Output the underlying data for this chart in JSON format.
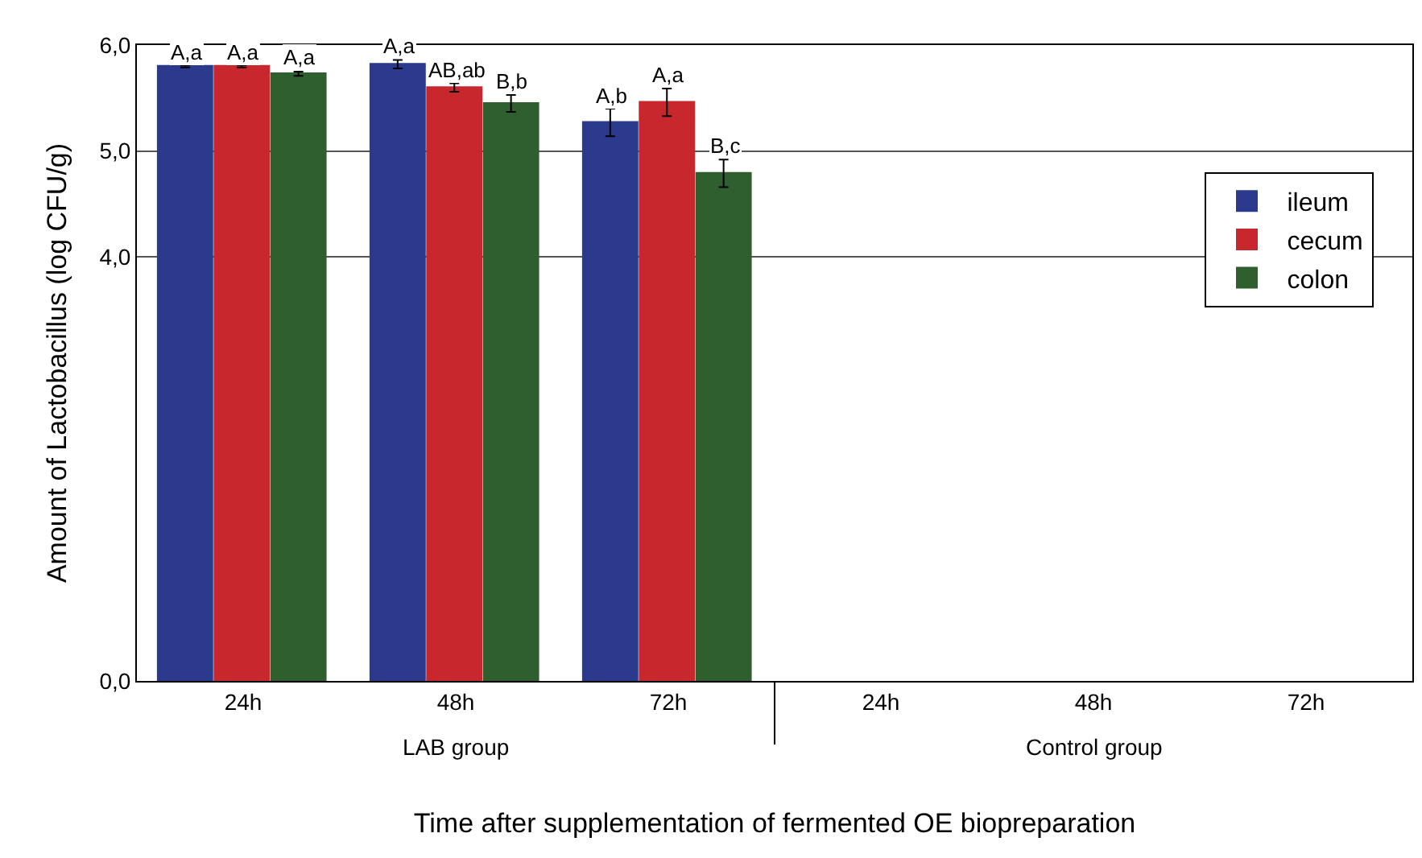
{
  "chart_data": {
    "type": "bar",
    "ylabel": "Amount of Lactobacillus (log CFU/g)",
    "xlabel": "Time after supplementation of fermented OE biopreparation",
    "categories": [
      "24h",
      "48h",
      "72h",
      "24h",
      "48h",
      "72h"
    ],
    "series": [
      {
        "name": "ileum",
        "color": "#2b3a8c",
        "values": [
          5.8,
          5.82,
          5.27,
          null,
          null,
          null
        ],
        "errors": [
          0.01,
          0.04,
          0.13,
          null,
          null,
          null
        ],
        "value_labels": [
          "A,a",
          "A,a",
          "A,b",
          null,
          null,
          null
        ]
      },
      {
        "name": "cecum",
        "color": "#c8282d",
        "values": [
          5.8,
          5.6,
          5.46,
          null,
          null,
          null
        ],
        "errors": [
          0.01,
          0.04,
          0.13,
          null,
          null,
          null
        ],
        "value_labels": [
          "A,a",
          "AB,ab",
          "A,a",
          null,
          null,
          null
        ]
      },
      {
        "name": "colon",
        "color": "#2f5f2f",
        "values": [
          5.73,
          5.45,
          4.79,
          null,
          null,
          null
        ],
        "errors": [
          0.02,
          0.08,
          0.13,
          null,
          null,
          null
        ],
        "value_labels": [
          "A,a",
          "B,b",
          "B,c",
          null,
          null,
          null
        ]
      }
    ],
    "ylim": [
      0,
      6.0
    ],
    "yticks": [
      {
        "value": 0,
        "label": "0,0"
      },
      {
        "value": 4,
        "label": "4,0"
      },
      {
        "value": 5,
        "label": "5,0"
      },
      {
        "value": 6,
        "label": "6,0"
      }
    ],
    "annotations": [
      "LAB group",
      "Control group"
    ],
    "grid": "y",
    "legend": "top right"
  }
}
